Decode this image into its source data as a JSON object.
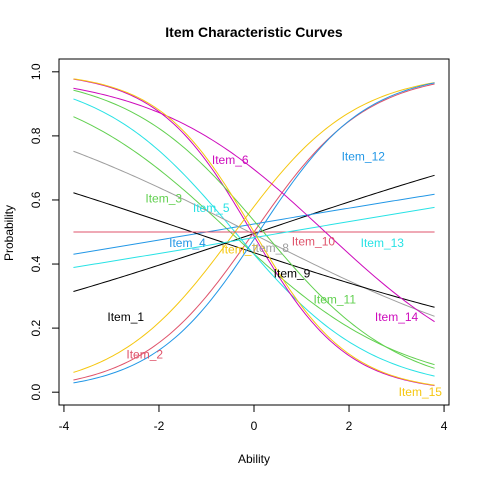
{
  "chart_data": {
    "type": "line",
    "title": "Item Characteristic Curves",
    "xlabel": "Ability",
    "ylabel": "Probability",
    "xlim": [
      -4,
      4
    ],
    "ylim": [
      0,
      1
    ],
    "x_range": [
      -3.8,
      3.8
    ],
    "x_ticks": [
      "-4",
      "-2",
      "0",
      "2",
      "4"
    ],
    "x_tick_values": [
      -4,
      -2,
      0,
      2,
      4
    ],
    "y_ticks": [
      "0.0",
      "0.2",
      "0.4",
      "0.6",
      "0.8",
      "1.0"
    ],
    "y_tick_values": [
      0,
      0.2,
      0.4,
      0.6,
      0.8,
      1.0
    ],
    "grid": false,
    "legend": "none",
    "series": [
      {
        "name": "Item_1",
        "color": "#000000",
        "a": 0.2,
        "b": 0.1,
        "label_x": -2.7,
        "label_y": 0.235
      },
      {
        "name": "Item_2",
        "color": "#DF536B",
        "a": 0.85,
        "b": 0.0,
        "label_x": -2.3,
        "label_y": 0.118
      },
      {
        "name": "Item_3",
        "color": "#61D04F",
        "a": -0.55,
        "b": -0.5,
        "label_x": -1.9,
        "label_y": 0.605
      },
      {
        "name": "Item_4",
        "color": "#2297E6",
        "a": 0.1,
        "b": -1.0,
        "label_x": -1.4,
        "label_y": 0.465
      },
      {
        "name": "Item_5",
        "color": "#28E2E5",
        "a": -0.7,
        "b": -0.4,
        "label_x": -0.9,
        "label_y": 0.575
      },
      {
        "name": "Item_6",
        "color": "#CD0BBC",
        "a": -1.0,
        "b": -0.05,
        "label_x": -0.5,
        "label_y": 0.725
      },
      {
        "name": "Item_7",
        "color": "#F5C710",
        "a": 0.8,
        "b": -0.4,
        "label_x": -0.3,
        "label_y": 0.445
      },
      {
        "name": "Item_8",
        "color": "#9E9E9E",
        "a": -0.3,
        "b": -0.1,
        "label_x": 0.35,
        "label_y": 0.45
      },
      {
        "name": "Item_9",
        "color": "#000000",
        "a": -0.2,
        "b": -1.3,
        "label_x": 0.8,
        "label_y": 0.37
      },
      {
        "name": "Item_10",
        "color": "#DF536B",
        "a": 0.0,
        "b": 0.0,
        "label_x": 1.25,
        "label_y": 0.47
      },
      {
        "name": "Item_11",
        "color": "#61D04F",
        "a": -0.7,
        "b": 0.2,
        "label_x": 1.7,
        "label_y": 0.29
      },
      {
        "name": "Item_12",
        "color": "#2297E6",
        "a": 0.9,
        "b": 0.1,
        "label_x": 2.3,
        "label_y": 0.735
      },
      {
        "name": "Item_13",
        "color": "#28E2E5",
        "a": 0.1,
        "b": 0.7,
        "label_x": 2.7,
        "label_y": 0.465
      },
      {
        "name": "Item_14",
        "color": "#CD0BBC",
        "a": -0.55,
        "b": 1.5,
        "label_x": 3.0,
        "label_y": 0.235
      },
      {
        "name": "Item_15",
        "color": "#F5C710",
        "a": -1.0,
        "b": 0.0,
        "label_x": 3.5,
        "label_y": 0.0
      }
    ]
  }
}
